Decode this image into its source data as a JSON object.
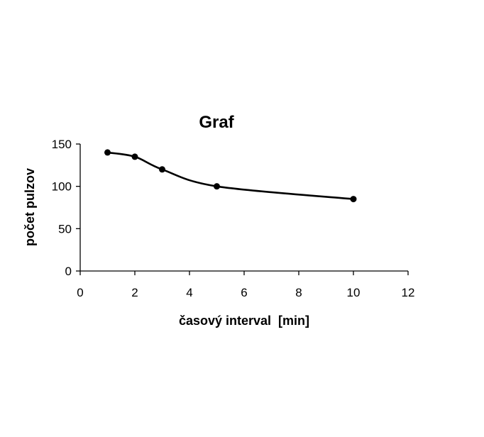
{
  "chart_data": {
    "type": "line",
    "title": "Graf",
    "xlabel": "časový interval  [min]",
    "ylabel": "počet pulzov",
    "x": [
      1,
      2,
      3,
      5,
      10
    ],
    "series": [
      {
        "values": [
          140,
          135,
          120,
          100,
          85
        ]
      }
    ],
    "xlim": [
      0,
      12
    ],
    "ylim": [
      0,
      150
    ],
    "xticks": [
      "0",
      "2",
      "4",
      "6",
      "8",
      "10",
      "12"
    ],
    "yticks": [
      "0",
      "50",
      "100",
      "150"
    ],
    "smooth": true,
    "markers": "circle",
    "line_color": "#000000",
    "grid": false,
    "legend": "none"
  }
}
